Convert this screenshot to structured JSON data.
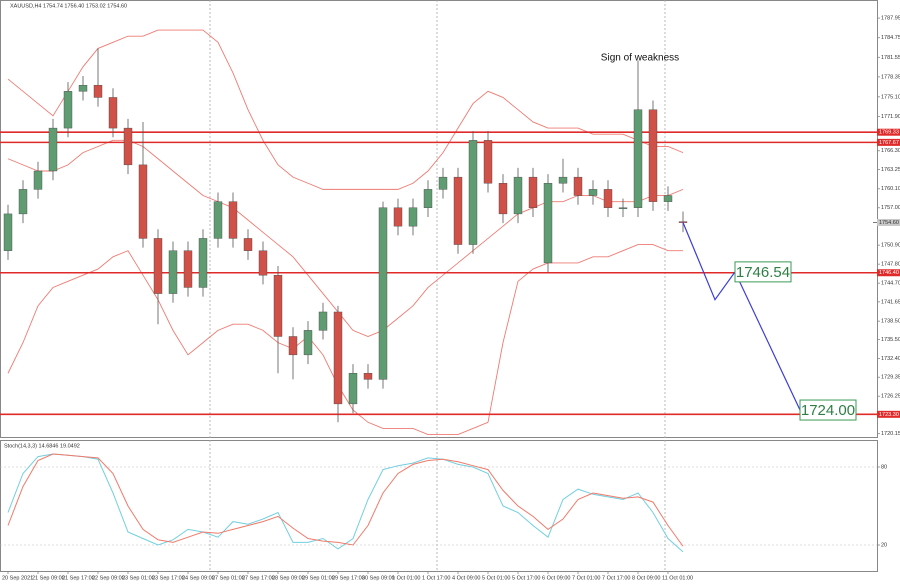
{
  "chart_data": [
    {
      "type": "candlestick",
      "title": "XAUUSD,H4 1754.74 1756.40 1753.02 1754.60",
      "categories": [
        "20 Sep 2021",
        null,
        "21 Sep 09:00",
        null,
        "21 Sep 17:00",
        null,
        "22 Sep 09:00",
        null,
        "23 Sep 01:00",
        null,
        "23 Sep 17:00",
        null,
        "24 Sep 09:00",
        null,
        "27 Sep 01:00",
        null,
        "27 Sep 17:00",
        null,
        "28 Sep 09:00",
        null,
        "29 Sep 01:00",
        null,
        "29 Sep 17:00",
        null,
        "30 Sep 09:00",
        null,
        "1 Oct 01:00",
        null,
        "1 Oct 17:00",
        null,
        "4 Oct 09:00",
        null,
        "5 Oct 01:00",
        null,
        "5 Oct 17:00",
        null,
        "6 Oct 09:00",
        null,
        "7 Oct 01:00",
        null,
        "7 Oct 17:00",
        null,
        "8 Oct 09:00",
        null,
        "11 Oct 01:00",
        null
      ],
      "open": [
        1750,
        1756,
        1760,
        1763,
        1770,
        1776,
        1777,
        1775,
        1770,
        1764,
        1752,
        1743,
        1750,
        1744,
        1752,
        1758,
        1752,
        1750,
        1746,
        1736,
        1733,
        1737,
        1740,
        1725,
        1730,
        1729,
        1757,
        1754,
        1757,
        1760,
        1762,
        1751,
        1768,
        1761,
        1756,
        1762,
        1748,
        1761,
        1762,
        1759,
        1760,
        1757,
        1757,
        1773,
        1758,
        1754.74
      ],
      "high": [
        1757.5,
        1761.5,
        1764.5,
        1771.5,
        1777.5,
        1778.5,
        1783,
        1776.5,
        1771.5,
        1771,
        1753.5,
        1751.5,
        1751.5,
        1753.5,
        1759.5,
        1759.5,
        1753.5,
        1751.5,
        1747.5,
        1737.5,
        1738.5,
        1741.5,
        1741,
        1731.5,
        1731.5,
        1758,
        1758.5,
        1758.5,
        1761.5,
        1763.5,
        1763.5,
        1769.5,
        1769.5,
        1762.5,
        1763.5,
        1763.5,
        1762.5,
        1765,
        1763.5,
        1761.5,
        1761.5,
        1758.5,
        1781,
        1774.5,
        1760.5,
        1756.4
      ],
      "low": [
        1748.5,
        1754.5,
        1758.5,
        1761.5,
        1768.5,
        1774.5,
        1773.5,
        1768.5,
        1762.5,
        1750.5,
        1738,
        1741.5,
        1742.5,
        1742.5,
        1750.5,
        1750.5,
        1748.5,
        1744.5,
        1730,
        1729,
        1731.5,
        1735.5,
        1722,
        1723.5,
        1727.5,
        1727.5,
        1752.5,
        1752.5,
        1755.5,
        1758.5,
        1749.5,
        1749.5,
        1759.5,
        1754.5,
        1754.5,
        1755.5,
        1746.5,
        1759.5,
        1757.5,
        1757.5,
        1755.5,
        1755.5,
        1755.5,
        1756.5,
        1756.5,
        1753.02
      ],
      "close": [
        1756,
        1760,
        1763,
        1770,
        1776,
        1777,
        1775,
        1770,
        1764,
        1752,
        1743,
        1750,
        1744,
        1752,
        1758,
        1752,
        1750,
        1746,
        1736,
        1733,
        1737,
        1740,
        1725,
        1730,
        1729,
        1757,
        1754,
        1757,
        1760,
        1762,
        1751,
        1768,
        1761,
        1756,
        1762,
        1757,
        1761,
        1762,
        1759,
        1760,
        1757,
        1757,
        1773,
        1758,
        1759,
        1754.6
      ],
      "up_color": "#5f9c72",
      "down_color": "#cf5148",
      "series": [
        {
          "color": "#ee7b72",
          "values": [
            1778,
            1776,
            1774,
            1772,
            1776,
            1780,
            1783,
            1784,
            1785,
            1785,
            1786,
            1786,
            1786,
            1786,
            1784,
            1779,
            1773,
            1768,
            1764,
            1762,
            1761,
            1760,
            1760,
            1760,
            1760,
            1760,
            1760,
            1761,
            1763,
            1766,
            1770,
            1774,
            1776,
            1775,
            1773,
            1771,
            1770,
            1770,
            1770,
            1769,
            1769,
            1769,
            1768,
            1767,
            1767,
            1766
          ]
        },
        {
          "color": "#ee7b72",
          "values": [
            1765,
            1764,
            1763,
            1763,
            1764,
            1766,
            1767,
            1768,
            1768,
            1767,
            1765,
            1763,
            1761,
            1759,
            1758,
            1757,
            1755,
            1753,
            1751,
            1749,
            1746,
            1743,
            1740,
            1737,
            1736,
            1737,
            1739,
            1741,
            1744,
            1746,
            1748,
            1750,
            1752,
            1754,
            1756,
            1757,
            1758,
            1758,
            1759,
            1759,
            1758,
            1758,
            1758,
            1759,
            1759,
            1760
          ]
        },
        {
          "color": "#ee7b72",
          "values": [
            1730,
            1735,
            1741,
            1744,
            1745,
            1746,
            1747,
            1749,
            1750,
            1746,
            1742,
            1737,
            1733,
            1735,
            1737,
            1738,
            1738,
            1737,
            1735,
            1734,
            1736,
            1733,
            1728,
            1724,
            1722,
            1721,
            1721,
            1721,
            1720,
            1720,
            1720,
            1721,
            1722,
            1735,
            1745,
            1747,
            1748,
            1748,
            1748,
            1749,
            1749,
            1750,
            1751,
            1751,
            1750,
            1750
          ]
        }
      ],
      "levels": [
        {
          "value": 1769.33,
          "label": "1769.33"
        },
        {
          "value": 1767.67,
          "label": "1767.67"
        },
        {
          "value": 1746.4,
          "label": "1746.40"
        },
        {
          "value": 1723.3,
          "label": "1723.30"
        }
      ],
      "level_color": "#e02a2a",
      "last_price": {
        "value": 1754.6,
        "label": "1754.60"
      },
      "projection": {
        "color": "#3b3bdc",
        "values": [
          1754.6,
          1742,
          1746.54,
          1724
        ],
        "value_labels": [
          null,
          null,
          "1746.54",
          "1724.00"
        ]
      },
      "annotation": "Sign of weakness",
      "ylim": [
        1719.6,
        1790.9
      ],
      "yticks": [
        {
          "value": 1787.95,
          "label": "1787.95"
        },
        {
          "value": 1784.75,
          "label": "1784.75"
        },
        {
          "value": 1781.55,
          "label": "1781.55"
        },
        {
          "value": 1778.35,
          "label": "1778.35"
        },
        {
          "value": 1775.1,
          "label": "1775.10"
        },
        {
          "value": 1771.9,
          "label": "1771.90"
        },
        {
          "value": 1766.3,
          "label": "1766.30"
        },
        {
          "value": 1763.25,
          "label": "1763.25"
        },
        {
          "value": 1760.1,
          "label": "1760.10"
        },
        {
          "value": 1757,
          "label": "1757.00"
        },
        {
          "value": 1750.9,
          "label": "1750.90"
        },
        {
          "value": 1747.8,
          "label": "1747.80"
        },
        {
          "value": 1744.7,
          "label": "1744.70"
        },
        {
          "value": 1741.65,
          "label": "1741.65"
        },
        {
          "value": 1738.5,
          "label": "1738.50"
        },
        {
          "value": 1735.5,
          "label": "1735.50"
        },
        {
          "value": 1732.4,
          "label": "1732.40"
        },
        {
          "value": 1729.35,
          "label": "1729.35"
        },
        {
          "value": 1726.25,
          "label": "1726.25"
        },
        {
          "value": 1720.15,
          "label": "1720.15"
        }
      ]
    },
    {
      "type": "line",
      "title": "Stoch(14,3,3) 14.6846 19.0492",
      "series": [
        {
          "color": "#72cfe0",
          "values": [
            45,
            75,
            88,
            90,
            89,
            88,
            86,
            60,
            30,
            25,
            20,
            24,
            32,
            30,
            26,
            38,
            36,
            40,
            45,
            22,
            22,
            25,
            17,
            25,
            55,
            78,
            81,
            83,
            87,
            86,
            82,
            80,
            75,
            50,
            45,
            35,
            26,
            55,
            63,
            59,
            57,
            55,
            60,
            45,
            25,
            14.68
          ]
        },
        {
          "color": "#f07a6a",
          "values": [
            35,
            65,
            85,
            90,
            89,
            88,
            87,
            75,
            50,
            32,
            24,
            22,
            26,
            30,
            29,
            32,
            35,
            38,
            42,
            33,
            25,
            23,
            22,
            20,
            35,
            60,
            75,
            82,
            85,
            86,
            84,
            81,
            78,
            62,
            50,
            42,
            32,
            40,
            55,
            60,
            58,
            56,
            57,
            53,
            35,
            19.05
          ]
        }
      ],
      "ylim": [
        0,
        100
      ],
      "yticks": [
        80,
        20
      ]
    }
  ]
}
